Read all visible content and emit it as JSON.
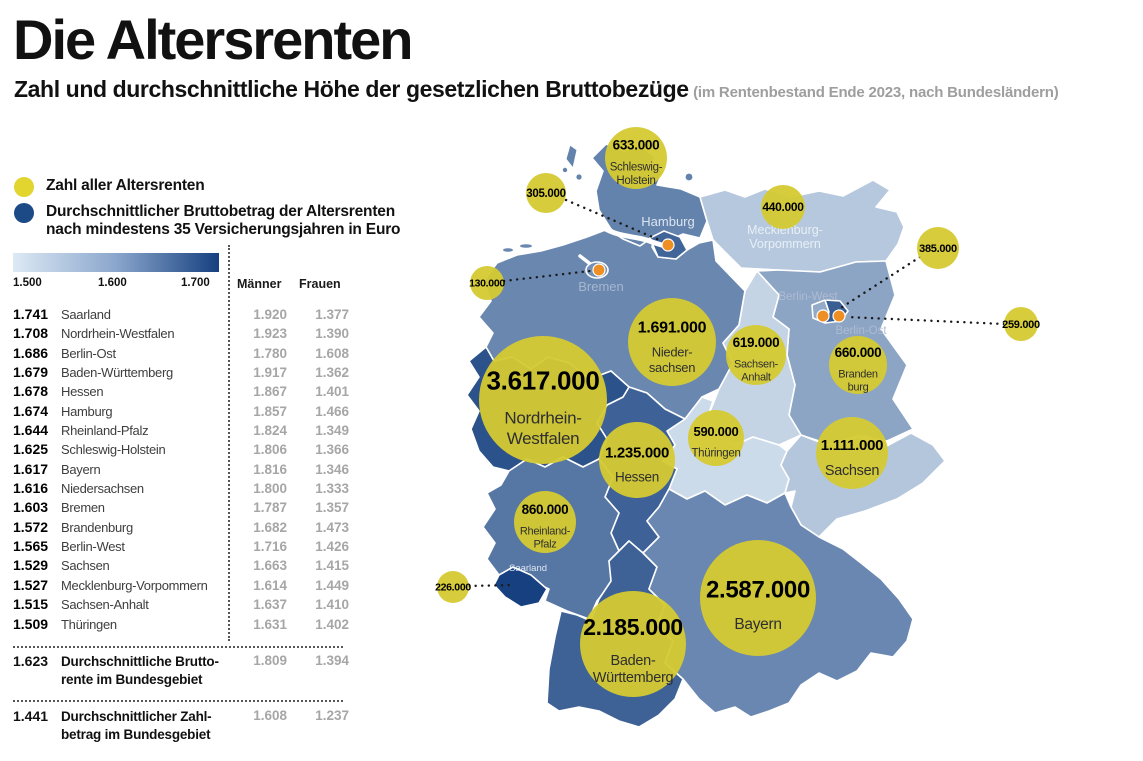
{
  "header": {
    "title": "Die Altersrenten",
    "subtitle": "Zahl und durchschnittliche Höhe der gesetzlichen Bruttobezüge",
    "subtitle_note": "(im Rentenbestand Ende 2023, nach Bundesländern)"
  },
  "legend": {
    "count_label": "Zahl aller Altersrenten",
    "avg_label_line1": "Durchschnittlicher Bruttobetrag der Altersrenten",
    "avg_label_line2": "nach mindestens 35 Versicherungsjahren in Euro",
    "scale_ticks": [
      "1.500",
      "1.600",
      "1.700"
    ],
    "col_men": "Männer",
    "col_women": "Frauen"
  },
  "colors": {
    "count_bubble": "#d5ca31",
    "legend_bubble": "#e2d52f",
    "avg_dark": "#1c4a87",
    "orange_dot": "#ef8e22",
    "gray_value": "#a6a6a6"
  },
  "table": {
    "rows": [
      {
        "value": "1.741",
        "name": "Saarland",
        "men": "1.920",
        "women": "1.377"
      },
      {
        "value": "1.708",
        "name": "Nordrhein-Westfalen",
        "men": "1.923",
        "women": "1.390"
      },
      {
        "value": "1.686",
        "name": "Berlin-Ost",
        "men": "1.780",
        "women": "1.608"
      },
      {
        "value": "1.679",
        "name": "Baden-Württemberg",
        "men": "1.917",
        "women": "1.362"
      },
      {
        "value": "1.678",
        "name": "Hessen",
        "men": "1.867",
        "women": "1.401"
      },
      {
        "value": "1.674",
        "name": "Hamburg",
        "men": "1.857",
        "women": "1.466"
      },
      {
        "value": "1.644",
        "name": "Rheinland-Pfalz",
        "men": "1.824",
        "women": "1.349"
      },
      {
        "value": "1.625",
        "name": "Schleswig-Holstein",
        "men": "1.806",
        "women": "1.366"
      },
      {
        "value": "1.617",
        "name": "Bayern",
        "men": "1.816",
        "women": "1.346"
      },
      {
        "value": "1.616",
        "name": "Niedersachsen",
        "men": "1.800",
        "women": "1.333"
      },
      {
        "value": "1.603",
        "name": "Bremen",
        "men": "1.787",
        "women": "1.357"
      },
      {
        "value": "1.572",
        "name": "Brandenburg",
        "men": "1.682",
        "women": "1.473"
      },
      {
        "value": "1.565",
        "name": "Berlin-West",
        "men": "1.716",
        "women": "1.426"
      },
      {
        "value": "1.529",
        "name": "Sachsen",
        "men": "1.663",
        "women": "1.415"
      },
      {
        "value": "1.527",
        "name": "Mecklenburg-Vorpommern",
        "men": "1.614",
        "women": "1.449"
      },
      {
        "value": "1.515",
        "name": "Sachsen-Anhalt",
        "men": "1.637",
        "women": "1.410"
      },
      {
        "value": "1.509",
        "name": "Thüringen",
        "men": "1.631",
        "women": "1.402"
      }
    ],
    "summary": [
      {
        "value": "1.623",
        "label_line1": "Durchschnittliche Brutto-",
        "label_line2": "rente im Bundesgebiet",
        "men": "1.809",
        "women": "1.394"
      },
      {
        "value": "1.441",
        "label_line1": "Durchschnittlicher Zahl-",
        "label_line2": "betrag im Bundesgebiet",
        "men": "1.608",
        "women": "1.237"
      }
    ]
  },
  "map_labels": {
    "hamburg": "Hamburg",
    "bremen": "Bremen",
    "mecklenburg_line1": "Mecklenburg-",
    "mecklenburg_line2": "Vorpommern",
    "berlin_west": "Berlin-West",
    "berlin_ost": "Berlin-Ost",
    "saarland": "Saarland"
  },
  "chart_data": {
    "type": "map-bubble",
    "title": "Die Altersrenten",
    "bubble_metric": "Zahl aller Altersrenten (Rentenbestand Ende 2023)",
    "color_metric": "Durchschnittlicher Bruttobetrag der Altersrenten nach mindestens 35 Versicherungsjahren in Euro",
    "color_scale": {
      "domain_min": 1500,
      "domain_max": 1741,
      "min_color": "#dde9f4",
      "max_color": "#16407f",
      "legend_ticks": [
        1500,
        1600,
        1700
      ]
    },
    "states": [
      {
        "id": "SH",
        "name": "Schleswig-Holstein",
        "count": 633000,
        "count_label": "633.000",
        "bubble_name_lines": [
          "Schleswig-",
          "Holstein"
        ],
        "avg_bruttobetrag": 1625,
        "men": 1806,
        "women": 1366
      },
      {
        "id": "HH",
        "name": "Hamburg",
        "count": 305000,
        "count_label": "305.000",
        "bubble_name_lines": [],
        "avg_bruttobetrag": 1674,
        "men": 1857,
        "women": 1466
      },
      {
        "id": "MV",
        "name": "Mecklenburg-Vorpommern",
        "count": 440000,
        "count_label": "440.000",
        "bubble_name_lines": [],
        "avg_bruttobetrag": 1527,
        "men": 1614,
        "women": 1449
      },
      {
        "id": "HB",
        "name": "Bremen",
        "count": 130000,
        "count_label": "130.000",
        "bubble_name_lines": [],
        "avg_bruttobetrag": 1603,
        "men": 1787,
        "women": 1357
      },
      {
        "id": "BLN_W",
        "name": "Berlin-West",
        "count": 385000,
        "count_label": "385.000",
        "bubble_name_lines": [],
        "avg_bruttobetrag": 1565,
        "men": 1716,
        "women": 1426
      },
      {
        "id": "BLN_O",
        "name": "Berlin-Ost",
        "count": 259000,
        "count_label": "259.000",
        "bubble_name_lines": [],
        "avg_bruttobetrag": 1686,
        "men": 1780,
        "women": 1608
      },
      {
        "id": "NI",
        "name": "Niedersachsen",
        "count": 1691000,
        "count_label": "1.691.000",
        "bubble_name_lines": [
          "Nieder-",
          "sachsen"
        ],
        "avg_bruttobetrag": 1616,
        "men": 1800,
        "women": 1333
      },
      {
        "id": "ST",
        "name": "Sachsen-Anhalt",
        "count": 619000,
        "count_label": "619.000",
        "bubble_name_lines": [
          "Sachsen-",
          "Anhalt"
        ],
        "avg_bruttobetrag": 1515,
        "men": 1637,
        "women": 1410
      },
      {
        "id": "BB",
        "name": "Brandenburg",
        "count": 660000,
        "count_label": "660.000",
        "bubble_name_lines": [
          "Branden",
          "burg"
        ],
        "avg_bruttobetrag": 1572,
        "men": 1682,
        "women": 1473
      },
      {
        "id": "NW",
        "name": "Nordrhein-Westfalen",
        "count": 3617000,
        "count_label": "3.617.000",
        "bubble_name_lines": [
          "Nordrhein-",
          "Westfalen"
        ],
        "avg_bruttobetrag": 1708,
        "men": 1923,
        "women": 1390
      },
      {
        "id": "TH",
        "name": "Thüringen",
        "count": 590000,
        "count_label": "590.000",
        "bubble_name_lines": [
          "Thüringen"
        ],
        "avg_bruttobetrag": 1509,
        "men": 1631,
        "women": 1402
      },
      {
        "id": "SN",
        "name": "Sachsen",
        "count": 1111000,
        "count_label": "1.111.000",
        "bubble_name_lines": [
          "Sachsen"
        ],
        "avg_bruttobetrag": 1529,
        "men": 1663,
        "women": 1415
      },
      {
        "id": "HE",
        "name": "Hessen",
        "count": 1235000,
        "count_label": "1.235.000",
        "bubble_name_lines": [
          "Hessen"
        ],
        "avg_bruttobetrag": 1678,
        "men": 1867,
        "women": 1401
      },
      {
        "id": "RP",
        "name": "Rheinland-Pfalz",
        "count": 860000,
        "count_label": "860.000",
        "bubble_name_lines": [
          "Rheinland-",
          "Pfalz"
        ],
        "avg_bruttobetrag": 1644,
        "men": 1824,
        "women": 1349
      },
      {
        "id": "SL",
        "name": "Saarland",
        "count": 226000,
        "count_label": "226.000",
        "bubble_name_lines": [],
        "avg_bruttobetrag": 1741,
        "men": 1920,
        "women": 1377
      },
      {
        "id": "BW",
        "name": "Baden-Württemberg",
        "count": 2185000,
        "count_label": "2.185.000",
        "bubble_name_lines": [
          "Baden-",
          "Württemberg"
        ],
        "avg_bruttobetrag": 1679,
        "men": 1917,
        "women": 1362
      },
      {
        "id": "BY",
        "name": "Bayern",
        "count": 2587000,
        "count_label": "2.587.000",
        "bubble_name_lines": [
          "Bayern"
        ],
        "avg_bruttobetrag": 1617,
        "men": 1816,
        "women": 1346
      }
    ],
    "national_summary": [
      {
        "label": "Durchschnittliche Bruttorente im Bundesgebiet",
        "value": 1623,
        "men": 1809,
        "women": 1394
      },
      {
        "label": "Durchschnittlicher Zahlbetrag im Bundesgebiet",
        "value": 1441,
        "men": 1608,
        "women": 1237
      }
    ]
  }
}
